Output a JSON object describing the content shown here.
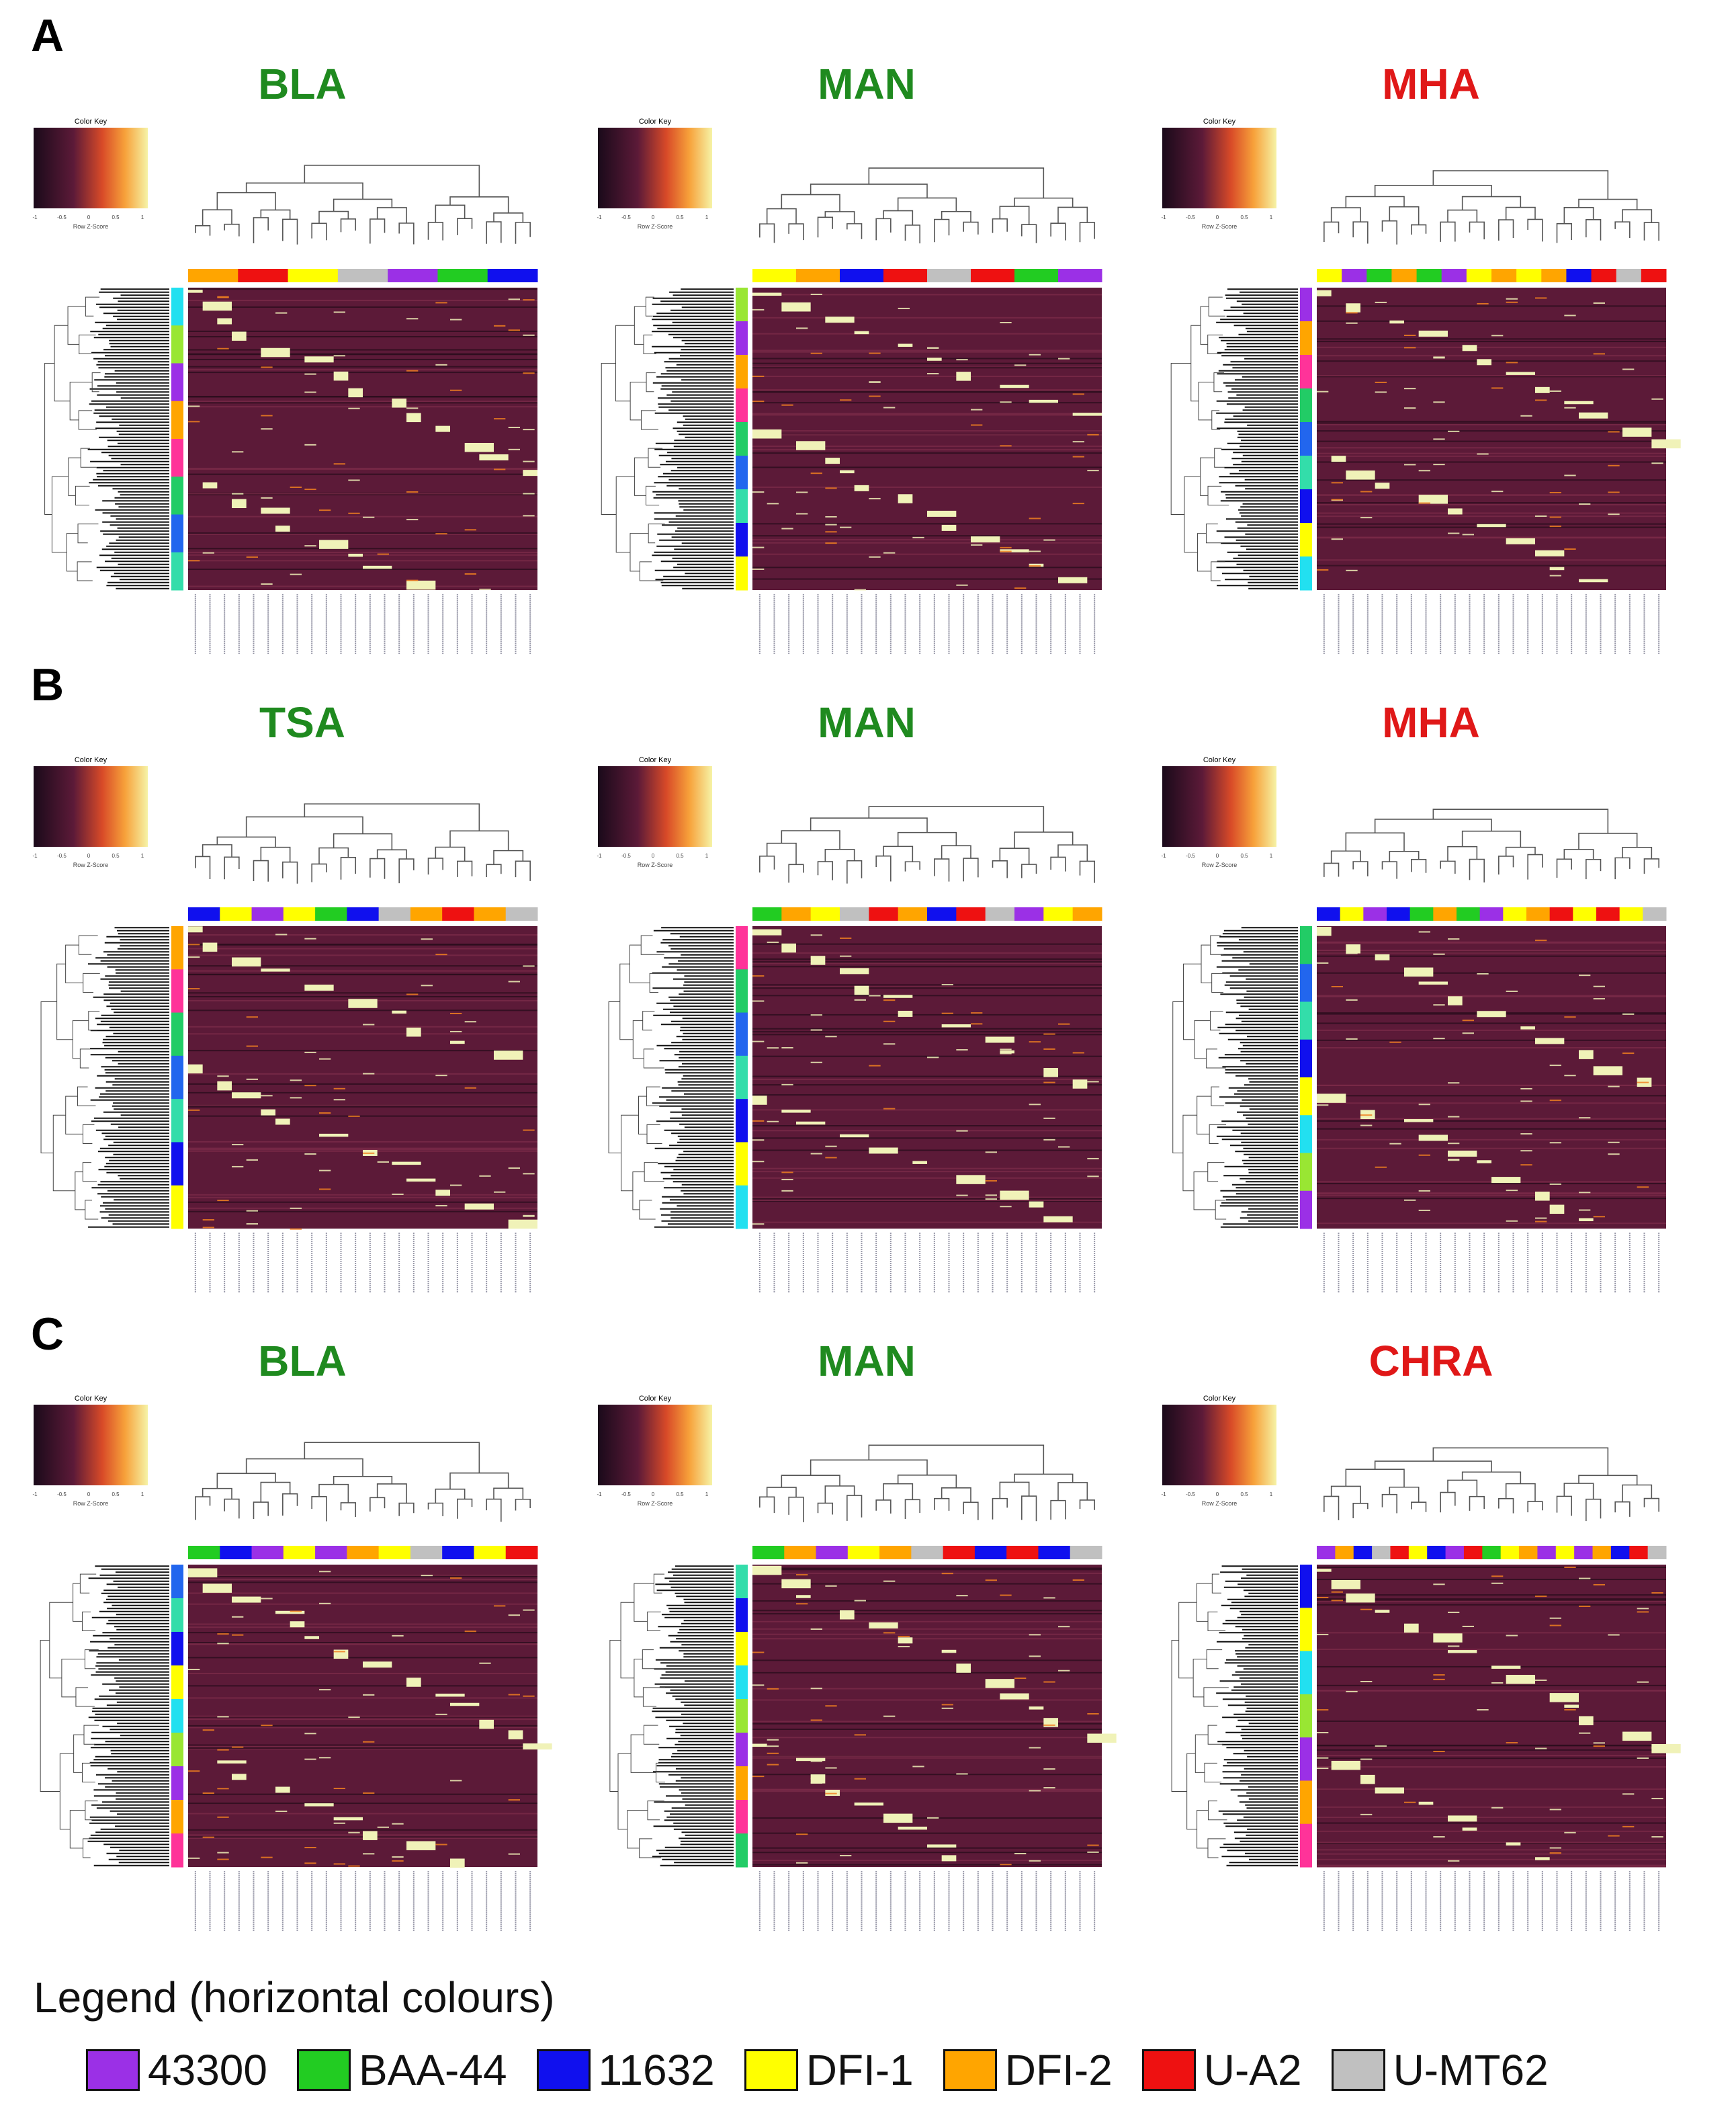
{
  "panels": [
    {
      "letter": "A",
      "heatmaps": [
        {
          "title": "BLA",
          "title_color": "#1f8a1f",
          "color_key_label": "Color Key",
          "z_label": "Row Z-Score",
          "ticks": [
            "-1",
            "-0.5",
            "0",
            "0.5",
            "1"
          ],
          "column_groups": [
            "DFI-2",
            "U-A2",
            "DFI-1",
            "U-MT62",
            "43300",
            "BAA-44",
            "11632"
          ]
        },
        {
          "title": "MAN",
          "title_color": "#1f8a1f",
          "color_key_label": "Color Key",
          "z_label": "Row Z-Score",
          "ticks": [
            "-1",
            "-0.5",
            "0",
            "0.5",
            "1"
          ],
          "column_groups": [
            "DFI-1",
            "DFI-2",
            "11632",
            "U-A2",
            "U-MT62",
            "U-A2",
            "BAA-44",
            "43300"
          ]
        },
        {
          "title": "MHA",
          "title_color": "#e01818",
          "color_key_label": "Color Key",
          "z_label": "Row Z-Score",
          "ticks": [
            "-1",
            "-0.5",
            "0",
            "0.5",
            "1"
          ],
          "column_groups": [
            "DFI-1",
            "43300",
            "BAA-44",
            "DFI-2",
            "BAA-44",
            "43300",
            "DFI-1",
            "DFI-2",
            "DFI-1",
            "DFI-2",
            "11632",
            "U-A2",
            "U-MT62",
            "U-A2"
          ]
        }
      ]
    },
    {
      "letter": "B",
      "heatmaps": [
        {
          "title": "TSA",
          "title_color": "#1f8a1f",
          "color_key_label": "Color Key",
          "z_label": "Row Z-Score",
          "ticks": [
            "-1",
            "-0.5",
            "0",
            "0.5",
            "1"
          ],
          "column_groups": [
            "11632",
            "DFI-1",
            "43300",
            "DFI-1",
            "BAA-44",
            "11632",
            "U-MT62",
            "DFI-2",
            "U-A2",
            "DFI-2",
            "U-MT62"
          ]
        },
        {
          "title": "MAN",
          "title_color": "#1f8a1f",
          "color_key_label": "Color Key",
          "z_label": "Row Z-Score",
          "ticks": [
            "-1",
            "-0.5",
            "0",
            "0.5",
            "1"
          ],
          "column_groups": [
            "BAA-44",
            "DFI-2",
            "DFI-1",
            "U-MT62",
            "U-A2",
            "DFI-2",
            "11632",
            "U-A2",
            "U-MT62",
            "43300",
            "DFI-1",
            "DFI-2"
          ]
        },
        {
          "title": "MHA",
          "title_color": "#e01818",
          "color_key_label": "Color Key",
          "z_label": "Row Z-Score",
          "ticks": [
            "-1",
            "-0.5",
            "0",
            "0.5",
            "1"
          ],
          "column_groups": [
            "11632",
            "DFI-1",
            "43300",
            "11632",
            "BAA-44",
            "DFI-2",
            "BAA-44",
            "43300",
            "DFI-1",
            "DFI-2",
            "U-A2",
            "DFI-1",
            "U-A2",
            "DFI-1",
            "U-MT62"
          ]
        }
      ]
    },
    {
      "letter": "C",
      "heatmaps": [
        {
          "title": "BLA",
          "title_color": "#1f8a1f",
          "color_key_label": "Color Key",
          "z_label": "Row Z-Score",
          "ticks": [
            "-1",
            "-0.5",
            "0",
            "0.5",
            "1"
          ],
          "column_groups": [
            "BAA-44",
            "11632",
            "43300",
            "DFI-1",
            "43300",
            "DFI-2",
            "DFI-1",
            "U-MT62",
            "11632",
            "DFI-1",
            "U-A2"
          ]
        },
        {
          "title": "MAN",
          "title_color": "#1f8a1f",
          "color_key_label": "Color Key",
          "z_label": "Row Z-Score",
          "ticks": [
            "-1",
            "-0.5",
            "0",
            "0.5",
            "1"
          ],
          "column_groups": [
            "BAA-44",
            "DFI-2",
            "43300",
            "DFI-1",
            "DFI-2",
            "U-MT62",
            "U-A2",
            "11632",
            "U-A2",
            "11632",
            "U-MT62"
          ]
        },
        {
          "title": "CHRA",
          "title_color": "#e01818",
          "color_key_label": "Color Key",
          "z_label": "Row Z-Score",
          "ticks": [
            "-1",
            "-0.5",
            "0",
            "0.5",
            "1"
          ],
          "column_groups": [
            "43300",
            "DFI-2",
            "11632",
            "U-MT62",
            "U-A2",
            "DFI-1",
            "11632",
            "43300",
            "U-A2",
            "BAA-44",
            "DFI-1",
            "DFI-2",
            "43300",
            "DFI-1",
            "43300",
            "DFI-2",
            "11632",
            "U-A2",
            "U-MT62"
          ]
        }
      ]
    }
  ],
  "legend": {
    "title": "Legend (horizontal colours)",
    "items": [
      {
        "label": "43300",
        "color": "#9b30e6"
      },
      {
        "label": "BAA-44",
        "color": "#22cc22"
      },
      {
        "label": "11632",
        "color": "#1010ee"
      },
      {
        "label": "DFI-1",
        "color": "#ffff00"
      },
      {
        "label": "DFI-2",
        "color": "#ffa500"
      },
      {
        "label": "U-A2",
        "color": "#ee1111"
      },
      {
        "label": "U-MT62",
        "color": "#c0c0c0"
      }
    ]
  },
  "colors": {
    "heat_background": "#5c1a38",
    "heat_high": "#f0f2b8",
    "heat_mid": "#f08020"
  }
}
